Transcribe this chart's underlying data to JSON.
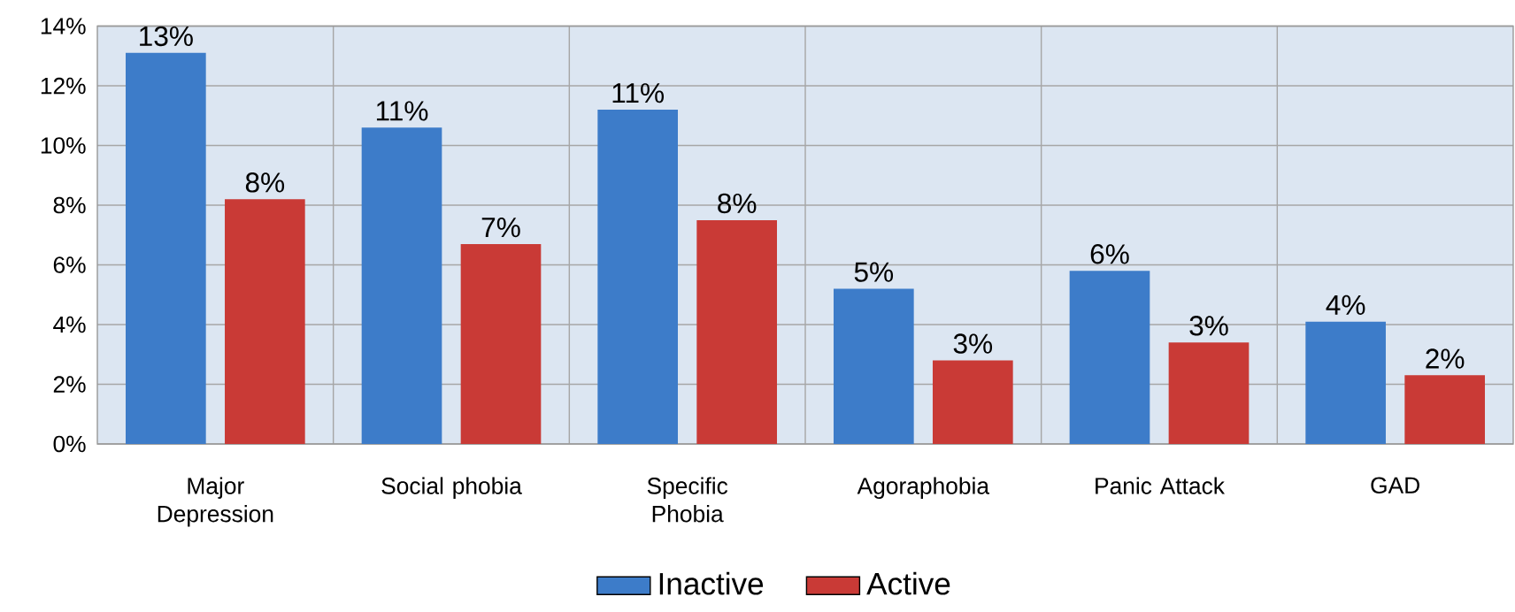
{
  "chart_data": {
    "type": "bar",
    "categories": [
      "Major Depression",
      "Social phobia",
      "Specific Phobia",
      "Agoraphobia",
      "Panic Attack",
      "GAD"
    ],
    "series": [
      {
        "name": "Inactive",
        "color": "#3d7cc9",
        "values": [
          13.1,
          10.6,
          11.2,
          5.2,
          5.8,
          4.1
        ],
        "value_labels": [
          "13%",
          "11%",
          "11%",
          "5%",
          "6%",
          "4%"
        ]
      },
      {
        "name": "Active",
        "color": "#c93a36",
        "values": [
          8.2,
          6.7,
          7.5,
          2.8,
          3.4,
          2.3
        ],
        "value_labels": [
          "8%",
          "7%",
          "8%",
          "3%",
          "3%",
          "2%"
        ]
      }
    ],
    "ylim": [
      0,
      14
    ],
    "yticks": [
      {
        "value": 0,
        "label": "0%"
      },
      {
        "value": 2,
        "label": "2%"
      },
      {
        "value": 4,
        "label": "4%"
      },
      {
        "value": 6,
        "label": "6%"
      },
      {
        "value": 8,
        "label": "8%"
      },
      {
        "value": 10,
        "label": "10%"
      },
      {
        "value": 12,
        "label": "12%"
      },
      {
        "value": 14,
        "label": "14%"
      }
    ],
    "grid": true,
    "legend": "bottom"
  }
}
